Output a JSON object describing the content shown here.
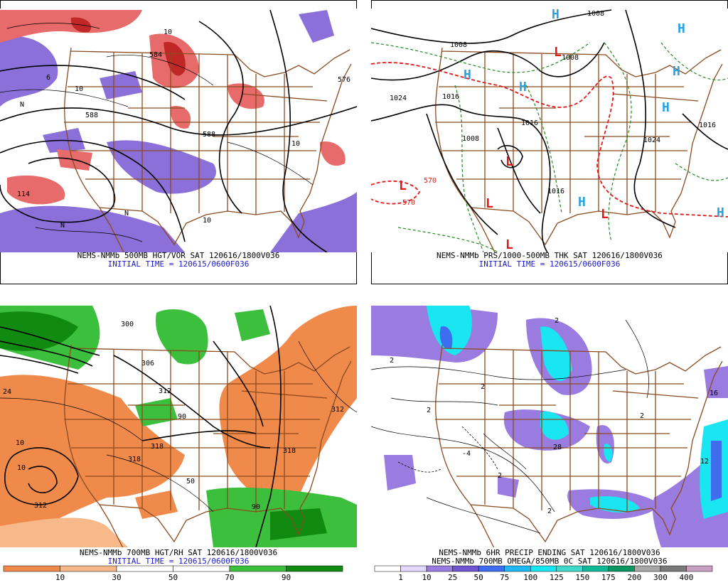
{
  "panels": [
    {
      "caption": "NEMS-NMMb 500MB HGT/VOR SAT 120616/1800V036",
      "initial_time": "INITIAL TIME = 120615/0600F036",
      "map_labels": [
        "584",
        "588",
        "588",
        "114",
        "10",
        "10",
        "10",
        "10",
        "N",
        "N",
        "N",
        "576",
        "6"
      ]
    },
    {
      "caption": "NEMS-NMMb PRS/1000-500MB THK SAT 120616/1800V036",
      "initial_time": "INITIAL TIME = 120615/0600F036",
      "map_labels": [
        "1008",
        "1008",
        "1016",
        "1024",
        "1008",
        "1016",
        "1016",
        "1024",
        "1016",
        "570",
        "570",
        "1008"
      ],
      "highs": [
        "H",
        "H",
        "H",
        "H",
        "H",
        "H",
        "H",
        "H"
      ],
      "lows": [
        "L",
        "L",
        "L",
        "L",
        "L",
        "L"
      ]
    },
    {
      "caption": "NEMS-NMMb 700MB HGT/RH SAT 120616/1800V036",
      "initial_time": "INITIAL TIME = 120615/0600F036",
      "map_labels": [
        "312",
        "318",
        "318",
        "312",
        "306",
        "300",
        "50",
        "90",
        "90",
        "10",
        "10",
        "24",
        "318",
        "312"
      ],
      "colorbar": {
        "labels": [
          10,
          30,
          50,
          70,
          90
        ],
        "colors": [
          "#f08a4b",
          "#f7b98a",
          "#ffffff",
          "#ffffff",
          "#3cbf3c",
          "#118a11"
        ]
      }
    },
    {
      "caption": "NEMS-NMMb 6HR PRECIP ENDING SAT 120616/1800V036",
      "caption_2": "NEMS-NMMb 700MB OMEGA/850MB 0C SAT 120616/1800V036",
      "map_labels": [
        "2",
        "2",
        "2",
        "2",
        "2",
        "16",
        "12",
        "28",
        "2",
        "-4",
        "2"
      ],
      "colorbar": {
        "labels": [
          1,
          10,
          25,
          50,
          75,
          100,
          125,
          150,
          175,
          200,
          300,
          400
        ],
        "colors": [
          "#ffffff",
          "#e4d8ff",
          "#9a7be0",
          "#6f55cf",
          "#3f6df0",
          "#1fb8f5",
          "#19e6f0",
          "#40d8c8",
          "#10b89a",
          "#0a9660",
          "#a8a8a8",
          "#7a7a7a",
          "#c89fc0"
        ]
      }
    }
  ]
}
